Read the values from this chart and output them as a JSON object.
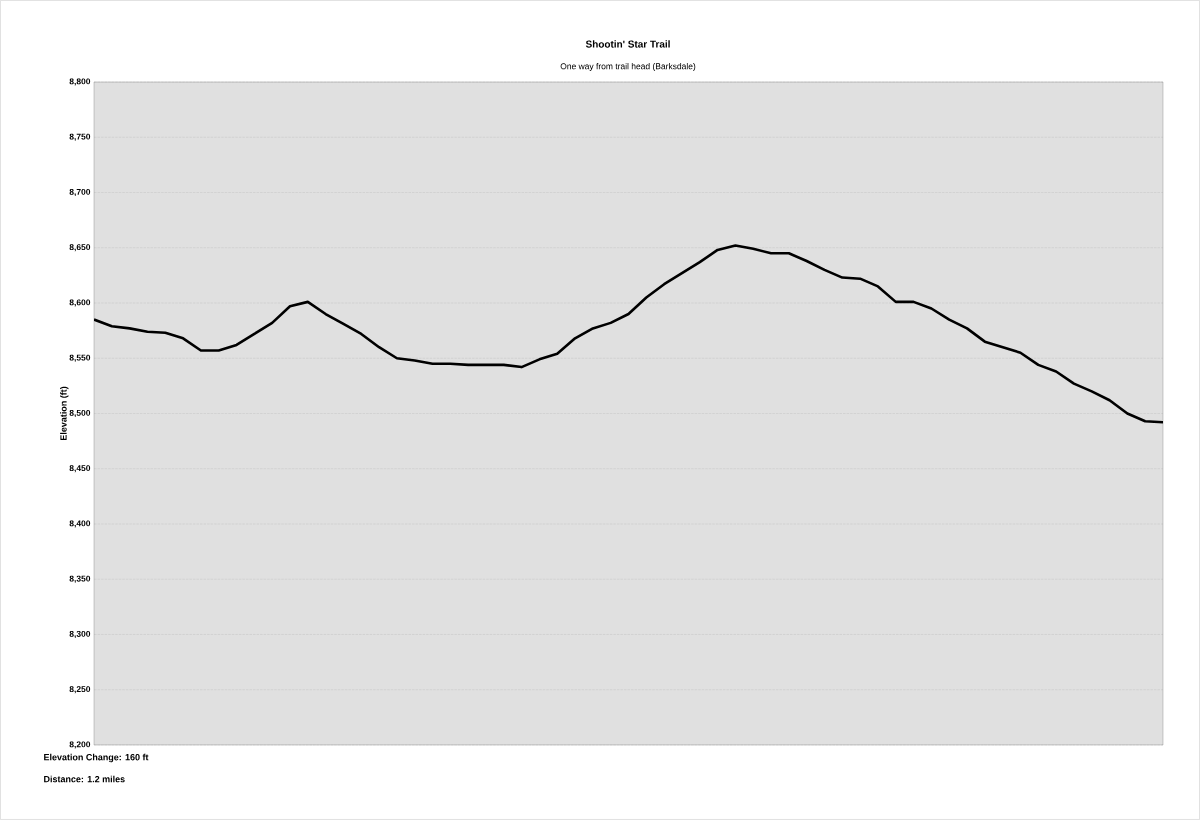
{
  "chart_data": {
    "type": "line",
    "title": "Shootin' Star Trail",
    "subtitle": "One way from trail head (Barksdale)",
    "ylabel": "Elevation (ft)",
    "categories": [
      null,
      null,
      null,
      null,
      null,
      null,
      null,
      null,
      null,
      null,
      null,
      null,
      null,
      null,
      null,
      null,
      null,
      null,
      null,
      null,
      null,
      null,
      null,
      null,
      null,
      null,
      null,
      null,
      null,
      null,
      null,
      null,
      null,
      null,
      null,
      null,
      null,
      null,
      null,
      null,
      null,
      null,
      null,
      null,
      null,
      null,
      null,
      null,
      null,
      null,
      null,
      null,
      null,
      null,
      null,
      null,
      null,
      null,
      null,
      null,
      null
    ],
    "series": [
      {
        "color": "#000000",
        "values": [
          8585,
          8579,
          8577,
          8574,
          8573,
          8568,
          8557,
          8557,
          8562,
          8572,
          8582,
          8597,
          8601,
          8590,
          8581,
          8572,
          8560,
          8550,
          8548,
          8545,
          8545,
          8544,
          8544,
          8544,
          8542,
          8549,
          8554,
          8568,
          8577,
          8582,
          8590,
          8605,
          8617,
          8627,
          8637,
          8648,
          8652,
          8649,
          8645,
          8645,
          8638,
          8630,
          8623,
          8622,
          8615,
          8601,
          8601,
          8595,
          8585,
          8577,
          8565,
          8560,
          8555,
          8544,
          8538,
          8527,
          8520,
          8512,
          8500,
          8493,
          8492
        ]
      }
    ],
    "ylim": [
      8200,
      8800
    ],
    "yticks": [
      {
        "value": 8200,
        "label": "8,200"
      },
      {
        "value": 8250,
        "label": "8,250"
      },
      {
        "value": 8300,
        "label": "8,300"
      },
      {
        "value": 8350,
        "label": "8,350"
      },
      {
        "value": 8400,
        "label": "8,400"
      },
      {
        "value": 8450,
        "label": "8,450"
      },
      {
        "value": 8500,
        "label": "8,500"
      },
      {
        "value": 8550,
        "label": "8,550"
      },
      {
        "value": 8600,
        "label": "8,600"
      },
      {
        "value": 8650,
        "label": "8,650"
      },
      {
        "value": 8700,
        "label": "8,700"
      },
      {
        "value": 8750,
        "label": "8,750"
      },
      {
        "value": 8800,
        "label": "8,800"
      }
    ],
    "grid": "y",
    "line_style": "solid",
    "marker": "none",
    "annotations": [
      "Elevation Change: 160 ft",
      "Distance: 1.2 miles"
    ]
  }
}
